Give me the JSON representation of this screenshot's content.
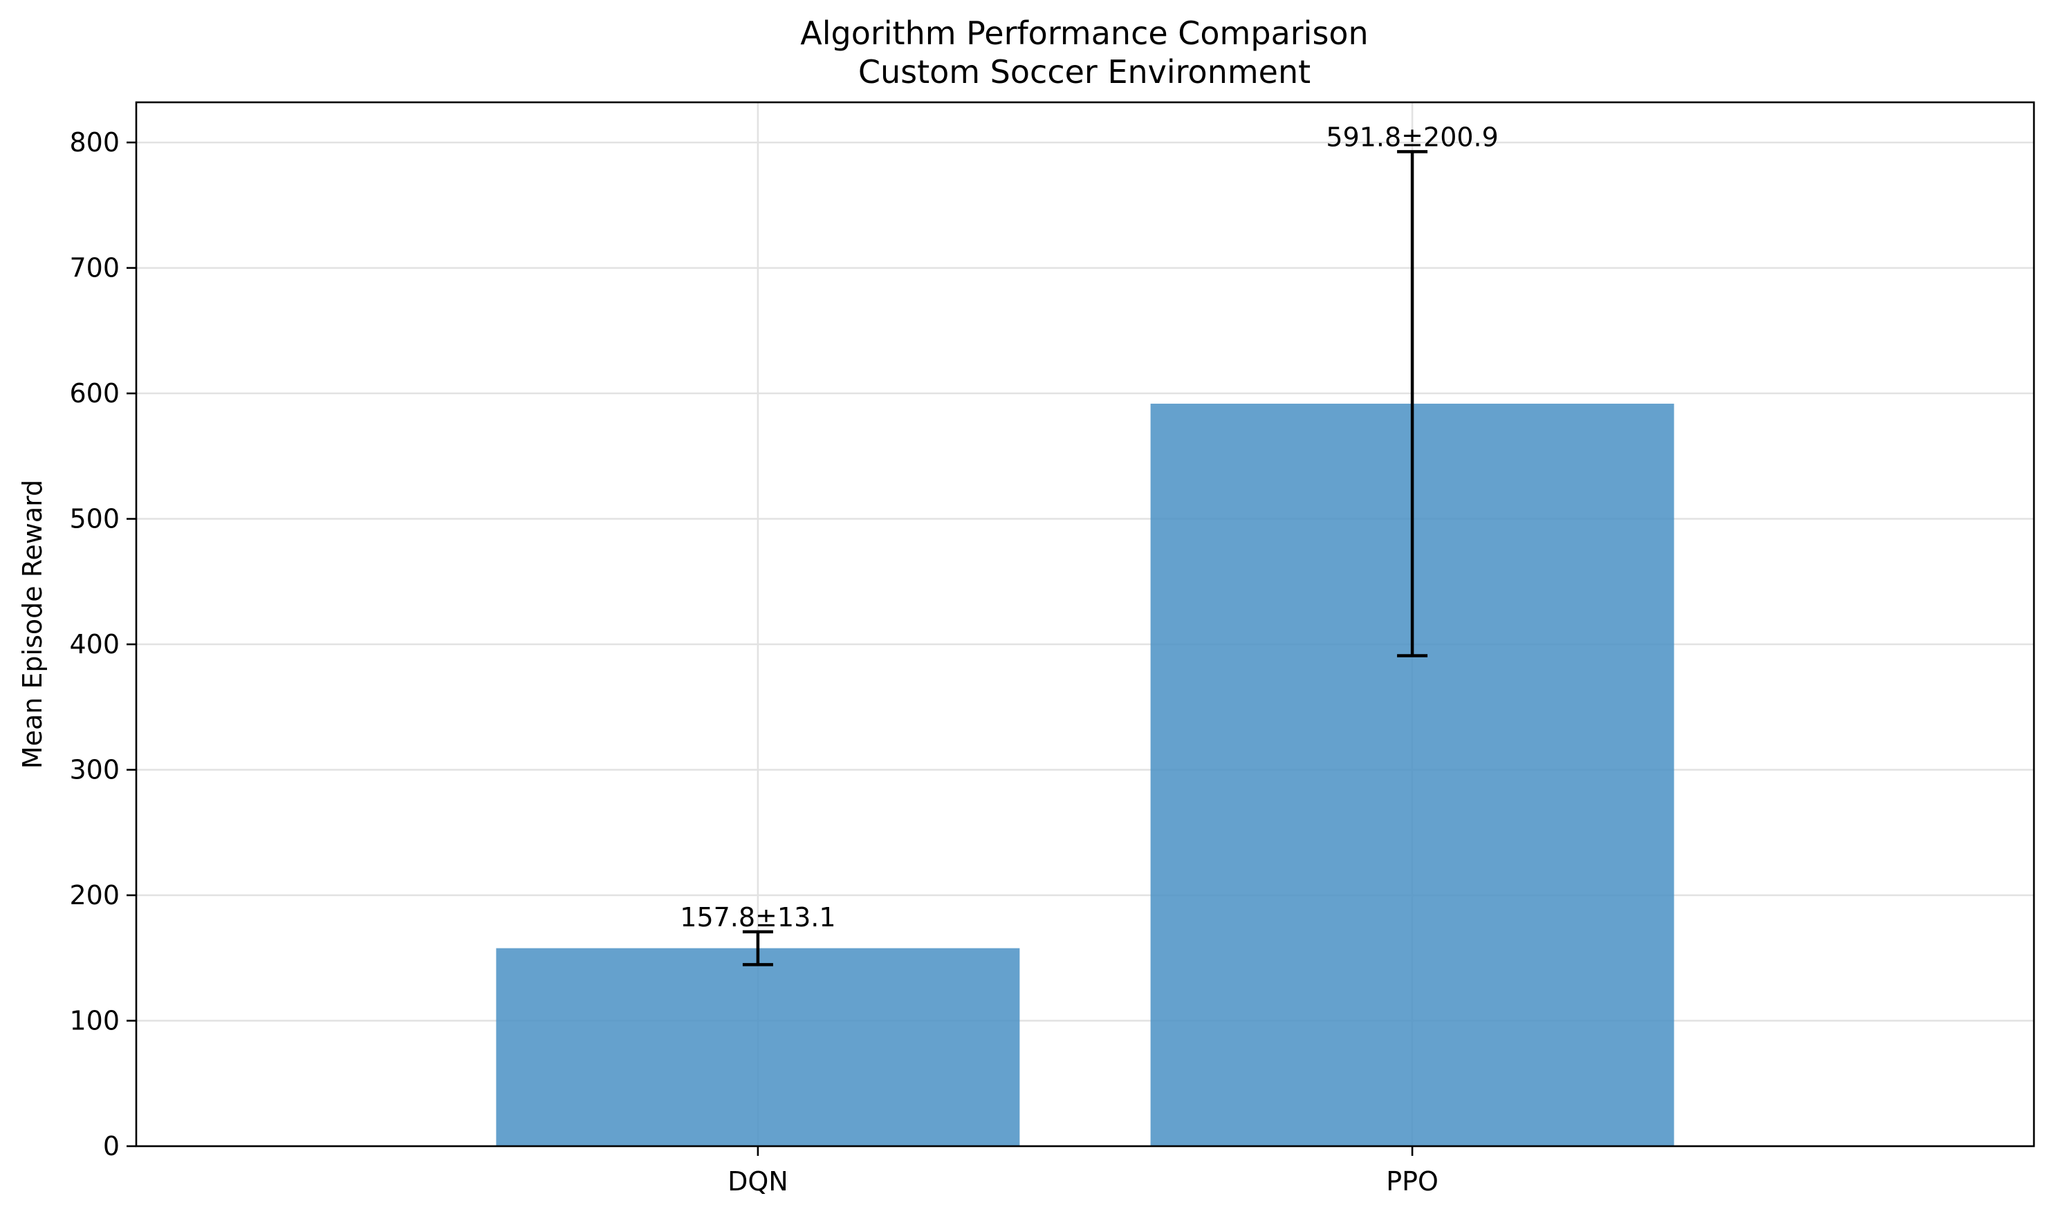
{
  "chart_data": {
    "type": "bar",
    "title": "Algorithm Performance Comparison",
    "subtitle": "Custom Soccer Environment",
    "xlabel": "",
    "ylabel": "Mean Episode Reward",
    "ylim": [
      0,
      832
    ],
    "yticks": [
      0,
      100,
      200,
      300,
      400,
      500,
      600,
      700,
      800
    ],
    "ytick_labels": [
      "0",
      "100",
      "200",
      "300",
      "400",
      "500",
      "600",
      "700",
      "800"
    ],
    "categories": [
      "DQN",
      "PPO"
    ],
    "values": [
      157.8,
      591.8
    ],
    "errors": [
      13.1,
      200.9
    ],
    "data_labels": [
      "157.8±13.1",
      "591.8±200.9"
    ],
    "grid": true,
    "bar_color": "#4a90c4",
    "bar_opacity": 0.85
  }
}
